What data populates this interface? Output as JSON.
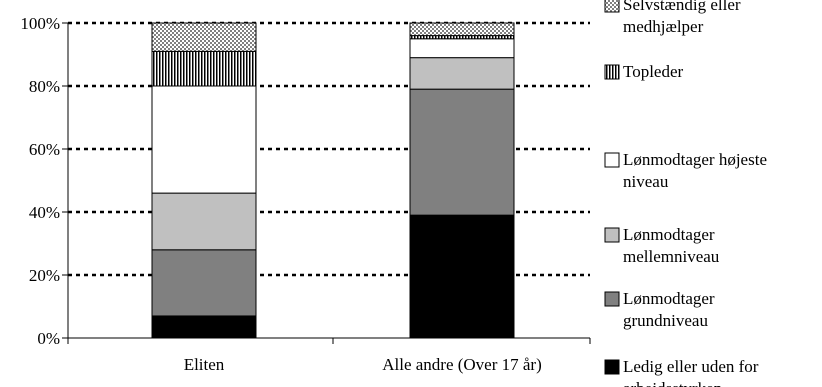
{
  "chart_data": {
    "type": "bar",
    "stacked": true,
    "categories": [
      "Eliten",
      "Alle andre (Over 17 år)"
    ],
    "ylim": [
      0,
      100
    ],
    "yticks": [
      0,
      20,
      40,
      60,
      80,
      100
    ],
    "ytick_labels": [
      "0%",
      "20%",
      "40%",
      "60%",
      "80%",
      "100%"
    ],
    "grid": "horizontal dotted",
    "legend_position": "right",
    "series": [
      {
        "name": "Ledig eller uden for arbejdsstyrken",
        "legend_lines": [
          "Ledig eller uden for",
          "arbejdsstyrken"
        ],
        "values": [
          7,
          39
        ],
        "fill": "#000000"
      },
      {
        "name": "Lønmodtager grundniveau",
        "legend_lines": [
          "Lønmodtager",
          "grundniveau"
        ],
        "values": [
          21,
          40
        ],
        "fill": "#808080"
      },
      {
        "name": "Lønmodtager mellemniveau",
        "legend_lines": [
          "Lønmodtager",
          "mellemniveau"
        ],
        "values": [
          18,
          10
        ],
        "fill": "#c0c0c0"
      },
      {
        "name": "Lønmodtager højeste niveau",
        "legend_lines": [
          "Lønmodtager højeste",
          "niveau"
        ],
        "values": [
          34,
          6
        ],
        "fill": "#ffffff"
      },
      {
        "name": "Topleder",
        "legend_lines": [
          "Topleder"
        ],
        "values": [
          11,
          1
        ],
        "fill": "pattern:vertical"
      },
      {
        "name": "Selvstændig eller medhjælper",
        "legend_lines": [
          "Selvstændig eller",
          "medhjælper"
        ],
        "values": [
          9,
          4
        ],
        "fill": "pattern:checker"
      }
    ]
  }
}
